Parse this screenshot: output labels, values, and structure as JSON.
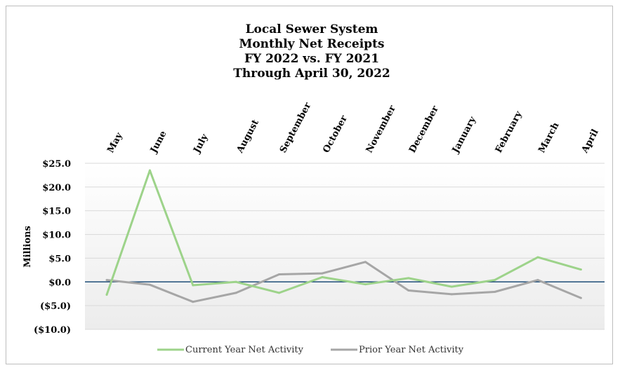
{
  "chart_data": {
    "type": "line",
    "title_lines": [
      "Local Sewer System",
      "Monthly Net Receipts",
      "FY 2022 vs. FY 2021",
      "Through April 30, 2022"
    ],
    "ylabel": "Millions",
    "xlabel": "",
    "categories": [
      "May",
      "June",
      "July",
      "August",
      "September",
      "October",
      "November",
      "December",
      "January",
      "February",
      "March",
      "April"
    ],
    "ylim": [
      -10,
      25
    ],
    "y_ticks": [
      25,
      20,
      15,
      10,
      5,
      0,
      -5,
      -10
    ],
    "y_tick_labels": [
      "$25.0",
      "$20.0",
      "$15.0",
      "$10.0",
      "$5.0",
      "$0.0",
      "($5.0)",
      "($10.0)"
    ],
    "grid": true,
    "legend_position": "bottom",
    "series": [
      {
        "name": "Current Year Net Activity",
        "color": "#9dd38a",
        "values": [
          -2.7,
          23.5,
          -0.7,
          0.0,
          -2.3,
          1.0,
          -0.5,
          0.8,
          -1.0,
          0.4,
          5.2,
          2.6
        ]
      },
      {
        "name": "Prior Year Net Activity",
        "color": "#a6a6a6",
        "values": [
          0.4,
          -0.6,
          -4.2,
          -2.3,
          1.6,
          1.8,
          4.2,
          -1.8,
          -2.6,
          -2.1,
          0.4,
          -3.4
        ]
      }
    ],
    "zero_line_color": "#1f4e79"
  }
}
